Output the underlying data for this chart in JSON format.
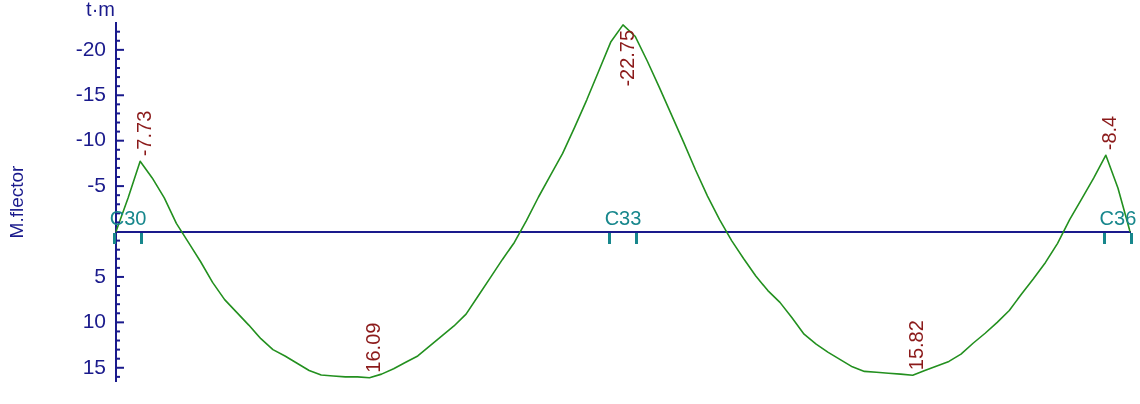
{
  "chart_data": {
    "type": "line",
    "ylabel": "M.flector",
    "annotations": [
      "t·m"
    ],
    "categories": [
      null,
      "C30",
      null,
      null,
      null,
      null,
      null,
      null,
      null,
      null,
      null,
      null,
      null,
      null,
      null,
      null,
      null,
      null,
      null,
      null,
      null,
      null,
      null,
      null,
      null,
      null,
      null,
      null,
      null,
      null,
      null,
      null,
      null,
      null,
      null,
      null,
      null,
      null,
      null,
      null,
      null,
      null,
      "C33",
      null,
      null,
      null,
      null,
      null,
      null,
      null,
      null,
      null,
      null,
      null,
      null,
      null,
      null,
      null,
      null,
      null,
      null,
      null,
      null,
      null,
      null,
      null,
      null,
      null,
      null,
      null,
      null,
      null,
      null,
      null,
      null,
      null,
      null,
      null,
      null,
      null,
      null,
      null,
      null,
      "C36",
      null
    ],
    "values": [
      0,
      -3.7,
      -7.73,
      -5.9,
      -3.7,
      -0.9,
      1.2,
      3.3,
      5.6,
      7.5,
      8.9,
      10.3,
      11.8,
      13.0,
      13.7,
      14.5,
      15.3,
      15.8,
      15.9,
      16.0,
      16.0,
      16.09,
      15.7,
      15.1,
      14.4,
      13.7,
      12.6,
      11.5,
      10.4,
      9.1,
      7.1,
      5.1,
      3.1,
      1.2,
      -1.2,
      -3.8,
      -6.2,
      -8.6,
      -11.5,
      -14.5,
      -17.7,
      -20.9,
      -22.75,
      -21.5,
      -18.8,
      -15.9,
      -12.9,
      -9.9,
      -6.8,
      -3.9,
      -1.3,
      1.0,
      3.0,
      4.9,
      6.5,
      7.8,
      9.5,
      11.3,
      12.4,
      13.3,
      14.1,
      14.9,
      15.4,
      15.5,
      15.6,
      15.7,
      15.82,
      15.3,
      14.8,
      14.3,
      13.5,
      12.3,
      11.2,
      10.0,
      8.7,
      6.9,
      5.2,
      3.4,
      1.3,
      -1.3,
      -3.6,
      -5.9,
      -8.4,
      -4.8,
      0
    ],
    "value_labels": [
      null,
      null,
      "-7.73",
      null,
      null,
      null,
      null,
      null,
      null,
      null,
      null,
      null,
      null,
      null,
      null,
      null,
      null,
      null,
      null,
      null,
      null,
      "16.09",
      null,
      null,
      null,
      null,
      null,
      null,
      null,
      null,
      null,
      null,
      null,
      null,
      null,
      null,
      null,
      null,
      null,
      null,
      null,
      null,
      "-22.75",
      null,
      null,
      null,
      null,
      null,
      null,
      null,
      null,
      null,
      null,
      null,
      null,
      null,
      null,
      null,
      null,
      null,
      null,
      null,
      null,
      null,
      null,
      null,
      "15.82",
      null,
      null,
      null,
      null,
      null,
      null,
      null,
      null,
      null,
      null,
      null,
      null,
      null,
      null,
      null,
      "-8.4",
      null,
      null
    ],
    "color": "#23901f",
    "ylim": [
      16.5,
      -23
    ],
    "yticks": [
      {
        "value": -22,
        "label": null
      },
      {
        "value": -21,
        "label": null
      },
      -20,
      {
        "value": -19,
        "label": null
      },
      {
        "value": -18,
        "label": null
      },
      {
        "value": -17,
        "label": null
      },
      {
        "value": -16,
        "label": null
      },
      -15,
      {
        "value": -14,
        "label": null
      },
      {
        "value": -13,
        "label": null
      },
      {
        "value": -12,
        "label": null
      },
      {
        "value": -11,
        "label": null
      },
      -10,
      {
        "value": -9,
        "label": null
      },
      {
        "value": -8,
        "label": null
      },
      {
        "value": -7,
        "label": null
      },
      {
        "value": -6,
        "label": null
      },
      -5,
      {
        "value": -4,
        "label": null
      },
      {
        "value": -3,
        "label": null
      },
      {
        "value": -2,
        "label": null
      },
      {
        "value": -1,
        "label": null
      },
      {
        "value": 1,
        "label": null
      },
      {
        "value": 2,
        "label": null
      },
      {
        "value": 3,
        "label": null
      },
      {
        "value": 4,
        "label": null
      },
      5,
      {
        "value": 6,
        "label": null
      },
      {
        "value": 7,
        "label": null
      },
      {
        "value": 8,
        "label": null
      },
      {
        "value": 9,
        "label": null
      },
      10,
      {
        "value": 11,
        "label": null
      },
      {
        "value": 12,
        "label": null
      },
      {
        "value": 13,
        "label": null
      },
      {
        "value": 14,
        "label": null
      },
      15,
      {
        "value": 16,
        "label": null
      }
    ]
  }
}
